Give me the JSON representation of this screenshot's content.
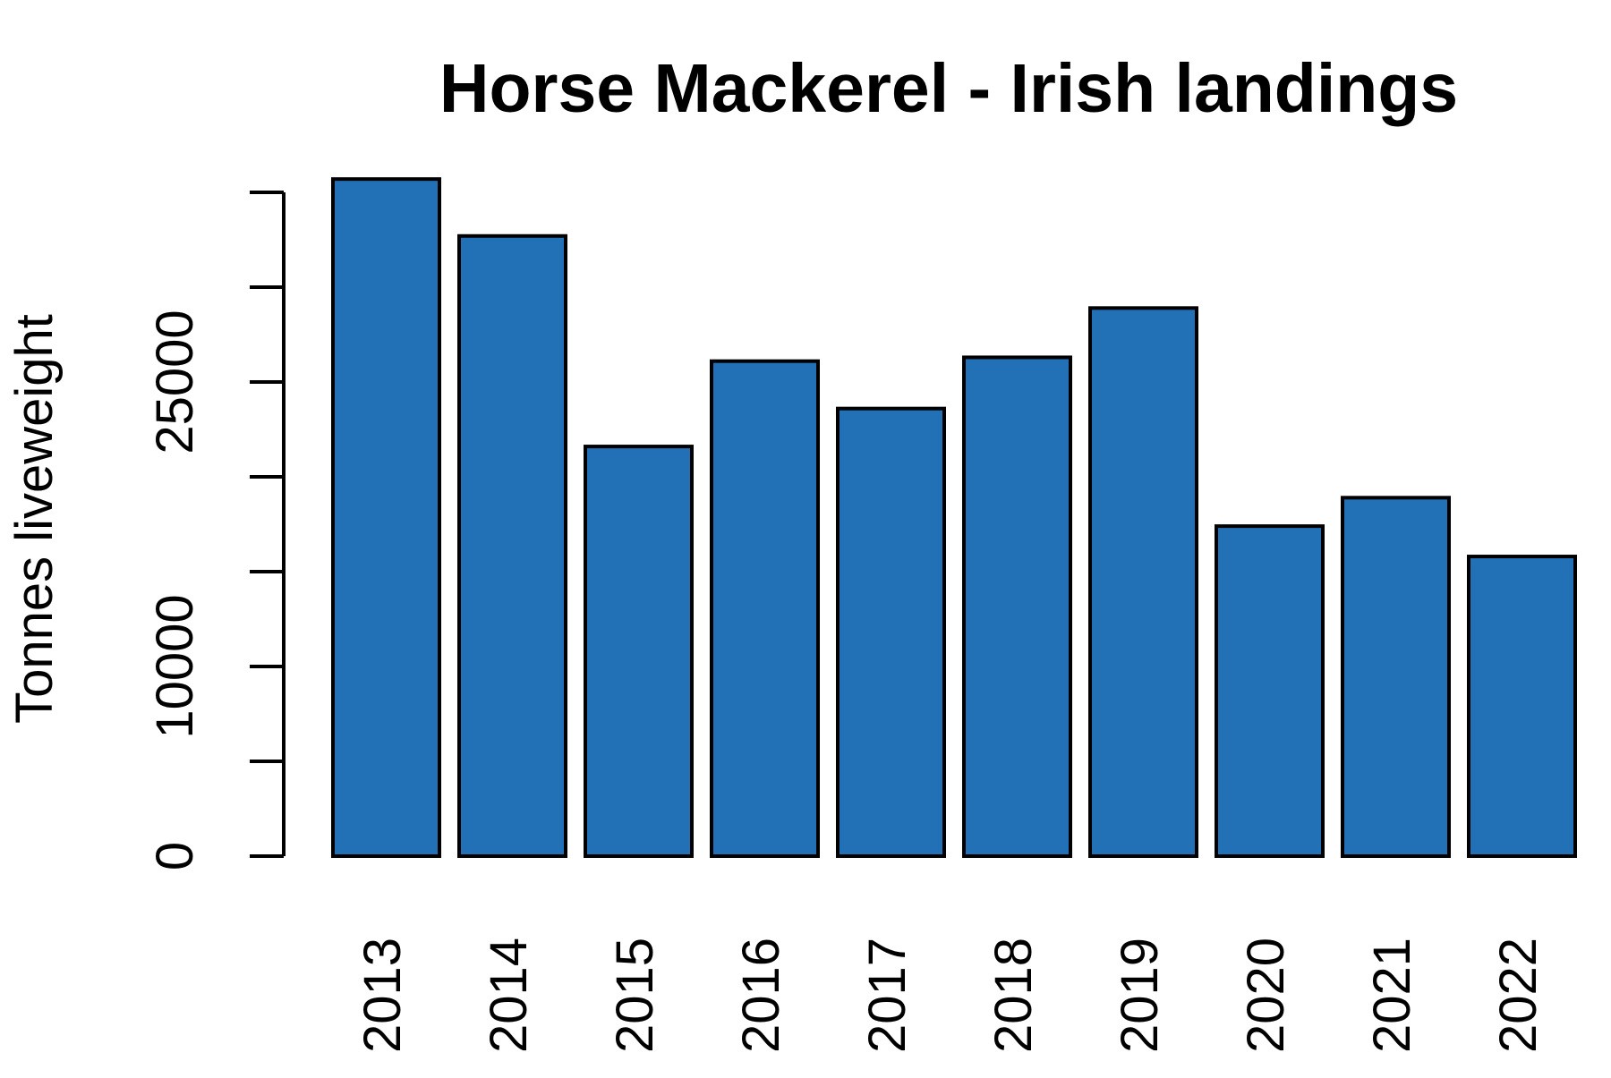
{
  "chart_data": {
    "type": "bar",
    "title": "Horse Mackerel - Irish landings",
    "xlabel": "",
    "ylabel": "Tonnes liveweight",
    "categories": [
      "2013",
      "2014",
      "2015",
      "2016",
      "2017",
      "2018",
      "2019",
      "2020",
      "2021",
      "2022"
    ],
    "values": [
      35700,
      32700,
      21600,
      26100,
      23600,
      26300,
      28900,
      17400,
      18900,
      15800
    ],
    "ylim": [
      0,
      35000
    ],
    "yticks": [
      0,
      5000,
      10000,
      15000,
      20000,
      25000,
      30000,
      35000
    ],
    "ytick_labels": [
      "0",
      "",
      "10000",
      "",
      "",
      "25000",
      "",
      ""
    ],
    "bar_color": "#2270b5",
    "bar_edge_color": "#000000",
    "background": "#ffffff",
    "grid": false,
    "legend": "none"
  }
}
